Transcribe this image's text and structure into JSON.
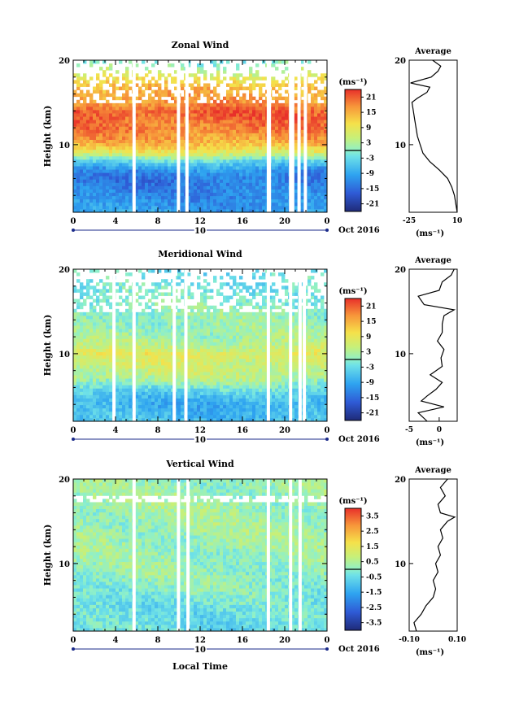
{
  "xlabel": "Local Time",
  "date_label": "Oct 2016",
  "day_label": "10",
  "chart_data": [
    {
      "type": "heatmap",
      "title": "Zonal Wind",
      "ylabel": "Height (km)",
      "x_ticks": [
        "0",
        "4",
        "8",
        "12",
        "16",
        "20",
        "0"
      ],
      "y_ticks": [
        "20",
        "10"
      ],
      "ylim": [
        2,
        20
      ],
      "colorbar": {
        "unit_label": "(ms⁻¹)",
        "ticks": [
          "21",
          "15",
          "9",
          "3",
          "-3",
          "-9",
          "-15",
          "-21"
        ],
        "range": [
          -24,
          24
        ]
      },
      "gap_hours": [
        5.6,
        9.8,
        10.6,
        18.3,
        18.4,
        20.4,
        20.6,
        21.2,
        21.8
      ],
      "profile_levels": [
        {
          "h": 2,
          "v": -10
        },
        {
          "h": 4,
          "v": -12
        },
        {
          "h": 6,
          "v": -14
        },
        {
          "h": 7,
          "v": -11
        },
        {
          "h": 8,
          "v": -4
        },
        {
          "h": 9,
          "v": 7
        },
        {
          "h": 10,
          "v": 14
        },
        {
          "h": 11,
          "v": 17
        },
        {
          "h": 12,
          "v": 19
        },
        {
          "h": 14,
          "v": 21
        },
        {
          "h": 15,
          "v": 17
        },
        {
          "h": 17,
          "v": 14
        },
        {
          "h": 19,
          "v": 3
        },
        {
          "h": 20,
          "v": -2
        }
      ],
      "average": {
        "title": "Average",
        "xlabel": "(ms⁻¹)",
        "xlim": [
          -25,
          10
        ],
        "x_ticks": [
          "-25",
          "10"
        ],
        "y_ticks": [
          "20",
          "10"
        ],
        "profile": [
          {
            "h": 2,
            "v": 10
          },
          {
            "h": 3,
            "v": 9
          },
          {
            "h": 4,
            "v": 8
          },
          {
            "h": 5,
            "v": 6
          },
          {
            "h": 6,
            "v": 3
          },
          {
            "h": 7,
            "v": -3
          },
          {
            "h": 8,
            "v": -10
          },
          {
            "h": 9,
            "v": -15
          },
          {
            "h": 10,
            "v": -17
          },
          {
            "h": 11,
            "v": -19
          },
          {
            "h": 12,
            "v": -20
          },
          {
            "h": 13,
            "v": -21
          },
          {
            "h": 14,
            "v": -22
          },
          {
            "h": 15,
            "v": -23
          },
          {
            "h": 15.5,
            "v": -19
          },
          {
            "h": 16.2,
            "v": -12
          },
          {
            "h": 16.8,
            "v": -10
          },
          {
            "h": 17.3,
            "v": -24
          },
          {
            "h": 18,
            "v": -9
          },
          {
            "h": 18.7,
            "v": -4
          },
          {
            "h": 19.3,
            "v": -2
          },
          {
            "h": 20,
            "v": -8
          }
        ]
      }
    },
    {
      "type": "heatmap",
      "title": "Meridional Wind",
      "ylabel": "Height (km)",
      "x_ticks": [
        "0",
        "4",
        "8",
        "12",
        "16",
        "20",
        "0"
      ],
      "y_ticks": [
        "20",
        "10"
      ],
      "ylim": [
        2,
        20
      ],
      "colorbar": {
        "unit_label": "(ms⁻¹)",
        "ticks": [
          "21",
          "15",
          "9",
          "3",
          "-3",
          "-9",
          "-15",
          "-21"
        ],
        "range": [
          -24,
          24
        ]
      },
      "gap_hours": [
        3.7,
        5.6,
        9.4,
        10.5,
        18.3,
        20.4,
        21.3,
        21.7
      ],
      "profile_levels": [
        {
          "h": 2,
          "v": -6
        },
        {
          "h": 4,
          "v": -8
        },
        {
          "h": 5,
          "v": -6
        },
        {
          "h": 6,
          "v": -2
        },
        {
          "h": 7,
          "v": 3
        },
        {
          "h": 8,
          "v": 5
        },
        {
          "h": 9,
          "v": 6
        },
        {
          "h": 10,
          "v": 8
        },
        {
          "h": 11,
          "v": 4
        },
        {
          "h": 12,
          "v": 2
        },
        {
          "h": 14,
          "v": 1
        },
        {
          "h": 16,
          "v": 0
        },
        {
          "h": 18,
          "v": -2
        },
        {
          "h": 20,
          "v": -3
        }
      ],
      "average": {
        "title": "Average",
        "xlabel": "(ms⁻¹)",
        "xlim": [
          -5,
          3
        ],
        "x_ticks": [
          "-5",
          "0"
        ],
        "y_ticks": [
          "20",
          "10"
        ],
        "profile": [
          {
            "h": 2,
            "v": -2
          },
          {
            "h": 3,
            "v": -3.5
          },
          {
            "h": 3.7,
            "v": 0.8
          },
          {
            "h": 4.4,
            "v": -3
          },
          {
            "h": 5,
            "v": -2
          },
          {
            "h": 5.8,
            "v": -0.5
          },
          {
            "h": 6.6,
            "v": 0.5
          },
          {
            "h": 7.5,
            "v": -1.5
          },
          {
            "h": 8.5,
            "v": 0.5
          },
          {
            "h": 9.5,
            "v": 0.3
          },
          {
            "h": 10.5,
            "v": 0.8
          },
          {
            "h": 11.5,
            "v": -0.3
          },
          {
            "h": 12.5,
            "v": 0.5
          },
          {
            "h": 13.5,
            "v": 0.5
          },
          {
            "h": 14.5,
            "v": 0.8
          },
          {
            "h": 15.2,
            "v": 2.5
          },
          {
            "h": 15.8,
            "v": -2.5
          },
          {
            "h": 16.8,
            "v": -3.5
          },
          {
            "h": 17.5,
            "v": 0
          },
          {
            "h": 18.5,
            "v": 0.5
          },
          {
            "h": 19.3,
            "v": 2
          },
          {
            "h": 20,
            "v": 2.5
          }
        ]
      }
    },
    {
      "type": "heatmap",
      "title": "Vertical Wind",
      "ylabel": "Height (km)",
      "x_ticks": [
        "0",
        "4",
        "8",
        "12",
        "16",
        "20",
        "0"
      ],
      "y_ticks": [
        "20",
        "10"
      ],
      "ylim": [
        2,
        20
      ],
      "colorbar": {
        "unit_label": "(ms⁻¹)",
        "ticks": [
          "3.5",
          "2.5",
          "1.5",
          "0.5",
          "-0.5",
          "-1.5",
          "-2.5",
          "-3.5"
        ],
        "range": [
          -4,
          4
        ]
      },
      "gap_hours": [
        5.6,
        9.8,
        10.7,
        18.3,
        20.4,
        21.3
      ],
      "profile_levels": [
        {
          "h": 2,
          "v": -0.5
        },
        {
          "h": 5,
          "v": -0.4
        },
        {
          "h": 8,
          "v": 0.1
        },
        {
          "h": 11,
          "v": 0.2
        },
        {
          "h": 14,
          "v": 0.3
        },
        {
          "h": 17,
          "v": 0.3
        },
        {
          "h": 20,
          "v": 0.2
        }
      ],
      "average": {
        "title": "Average",
        "xlabel": "(ms⁻¹)",
        "xlim": [
          -0.1,
          0.1
        ],
        "x_ticks": [
          "-0.10",
          "0.10"
        ],
        "y_ticks": [
          "20",
          "10"
        ],
        "profile": [
          {
            "h": 2,
            "v": -0.07
          },
          {
            "h": 3,
            "v": -0.08
          },
          {
            "h": 4,
            "v": -0.05
          },
          {
            "h": 5,
            "v": -0.03
          },
          {
            "h": 6,
            "v": 0.0
          },
          {
            "h": 7,
            "v": 0.01
          },
          {
            "h": 8,
            "v": 0.0
          },
          {
            "h": 9,
            "v": 0.02
          },
          {
            "h": 10,
            "v": 0.01
          },
          {
            "h": 11,
            "v": 0.03
          },
          {
            "h": 12,
            "v": 0.02
          },
          {
            "h": 13,
            "v": 0.04
          },
          {
            "h": 14,
            "v": 0.03
          },
          {
            "h": 15,
            "v": 0.06
          },
          {
            "h": 15.5,
            "v": 0.09
          },
          {
            "h": 16,
            "v": 0.03
          },
          {
            "h": 17,
            "v": 0.02
          },
          {
            "h": 18,
            "v": 0.05
          },
          {
            "h": 19,
            "v": 0.03
          },
          {
            "h": 20,
            "v": 0.06
          }
        ]
      }
    }
  ]
}
